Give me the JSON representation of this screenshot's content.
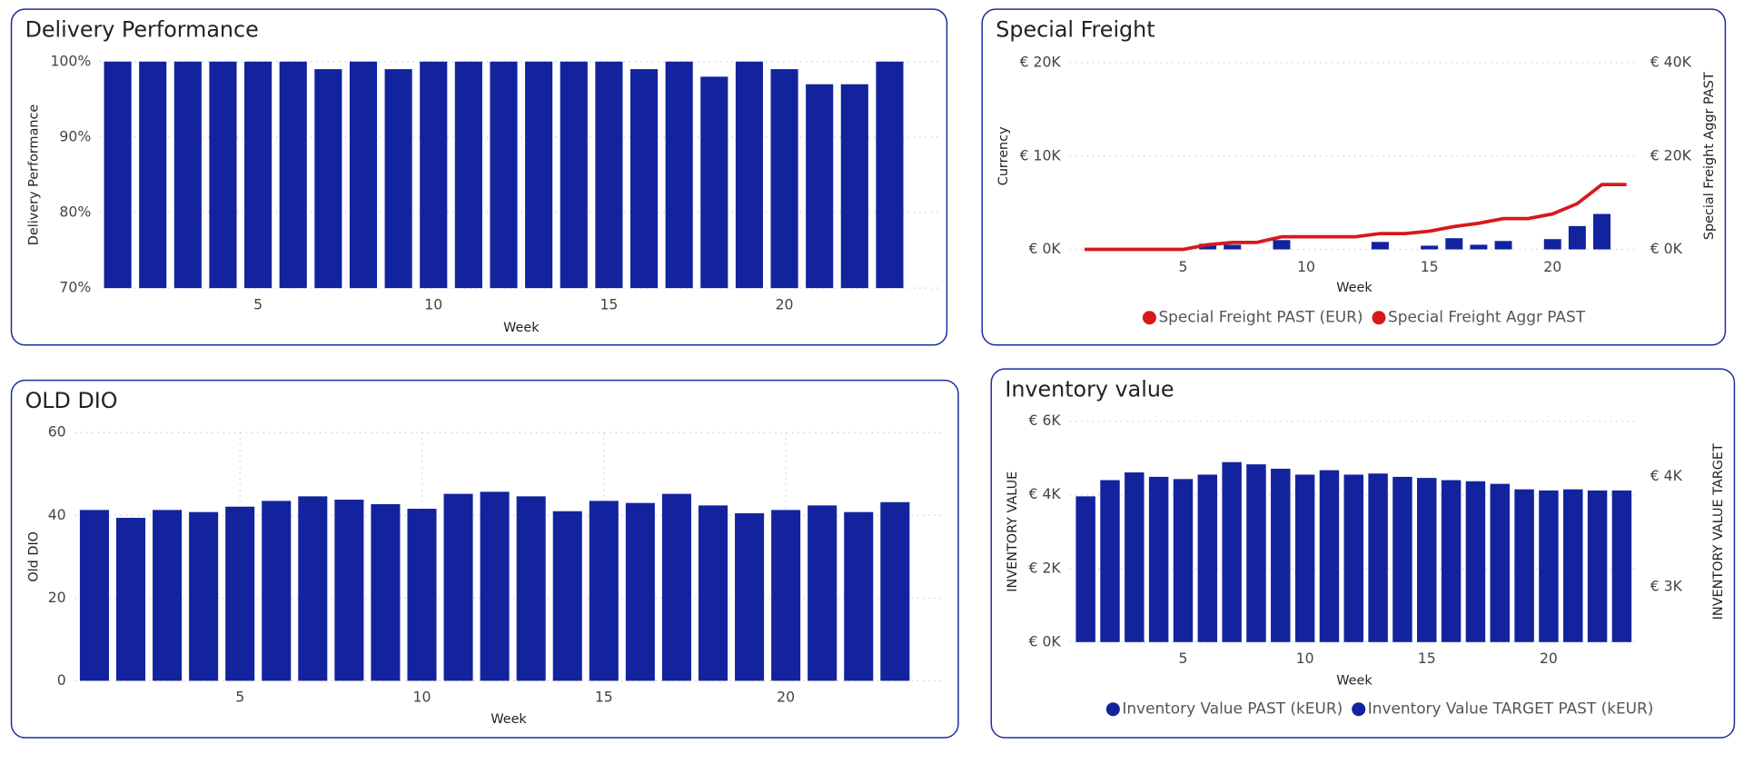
{
  "chart_data": [
    {
      "type": "bar",
      "title": "Delivery Performance",
      "x_label": "Week",
      "y_label": "Delivery Performance",
      "x": [
        1,
        2,
        3,
        4,
        5,
        6,
        7,
        8,
        9,
        10,
        11,
        12,
        13,
        14,
        15,
        16,
        17,
        18,
        19,
        20,
        21,
        22,
        23
      ],
      "values": [
        100,
        100,
        100,
        100,
        100,
        100,
        99,
        100,
        99,
        100,
        100,
        100,
        100,
        100,
        100,
        99,
        100,
        98,
        100,
        99,
        97,
        97,
        100
      ],
      "color": "#13239e",
      "xlim": [
        0.5,
        24.5
      ],
      "xticks": [
        5,
        10,
        15,
        20
      ],
      "ylim": [
        70,
        100
      ],
      "yticks": [
        {
          "value": 70,
          "label": "70%"
        },
        {
          "value": 80,
          "label": "80%"
        },
        {
          "value": 90,
          "label": "90%"
        },
        {
          "value": 100,
          "label": "100%"
        }
      ],
      "grid": true
    },
    {
      "type": "combo",
      "title": "Special Freight",
      "x_label": "Week",
      "y_label": "Currency",
      "y2_label": "Special Freight Aggr PAST",
      "x": [
        1,
        2,
        3,
        4,
        5,
        6,
        7,
        8,
        9,
        10,
        11,
        12,
        13,
        14,
        15,
        16,
        17,
        18,
        19,
        20,
        21,
        22,
        23
      ],
      "series": [
        {
          "name": "Special Freight PAST (EUR)",
          "type": "bar",
          "color": "#13239e",
          "legend_color": "#d7191c",
          "values": [
            0,
            0,
            0,
            0,
            0,
            600,
            500,
            0,
            1000,
            0,
            0,
            0,
            800,
            0,
            400,
            1200,
            500,
            900,
            0,
            1100,
            2500,
            3800,
            0
          ]
        },
        {
          "name": "Special Freight Aggr PAST",
          "type": "line",
          "axis": "y2",
          "color": "#d7191c",
          "values": [
            0,
            0,
            0,
            0,
            0,
            1000,
            1500,
            1500,
            2700,
            2700,
            2700,
            2700,
            3400,
            3400,
            3900,
            4900,
            5600,
            6600,
            6600,
            7600,
            9800,
            13900,
            13900
          ]
        }
      ],
      "xlim": [
        0.4,
        23.5
      ],
      "xticks": [
        5,
        10,
        15,
        20
      ],
      "ylim": [
        0,
        20000
      ],
      "yticks": [
        {
          "value": 0,
          "label": "€ 0K"
        },
        {
          "value": 10000,
          "label": "€ 10K"
        },
        {
          "value": 20000,
          "label": "€ 20K"
        }
      ],
      "y2lim": [
        0,
        40000
      ],
      "y2ticks": [
        {
          "value": 0,
          "label": "€ 0K"
        },
        {
          "value": 20000,
          "label": "€ 20K"
        },
        {
          "value": 40000,
          "label": "€ 40K"
        }
      ],
      "grid": true,
      "legend": "bottom"
    },
    {
      "type": "bar",
      "title": "OLD DIO",
      "x_label": "Week",
      "y_label": "Old DIO",
      "x": [
        1,
        2,
        3,
        4,
        5,
        6,
        7,
        8,
        9,
        10,
        11,
        12,
        13,
        14,
        15,
        16,
        17,
        18,
        19,
        20,
        21,
        22,
        23
      ],
      "values": [
        41.3,
        39.4,
        41.3,
        40.8,
        42.1,
        43.5,
        44.6,
        43.8,
        42.7,
        41.6,
        45.2,
        45.7,
        44.6,
        41.0,
        43.5,
        43.0,
        45.2,
        42.4,
        40.5,
        41.3,
        42.4,
        40.8,
        43.2
      ],
      "color": "#13239e",
      "xlim": [
        0.47,
        24.3
      ],
      "xticks": [
        5,
        10,
        15,
        20
      ],
      "ylim": [
        0,
        60
      ],
      "yticks": [
        0,
        20,
        40,
        60
      ],
      "grid": true,
      "xgrid": true
    },
    {
      "type": "combo",
      "title": "Inventory value",
      "x_label": "Week",
      "y_label": "INVENTORY VALUE",
      "y2_label": "INVENTORY VALUE TARGET",
      "x": [
        1,
        2,
        3,
        4,
        5,
        6,
        7,
        8,
        9,
        10,
        11,
        12,
        13,
        14,
        15,
        16,
        17,
        18,
        19,
        20,
        21,
        22,
        23
      ],
      "series": [
        {
          "name": "Inventory Value PAST (kEUR)",
          "type": "bar",
          "color": "#13239e",
          "values": [
            3960,
            4400,
            4610,
            4490,
            4430,
            4550,
            4890,
            4830,
            4710,
            4550,
            4670,
            4550,
            4580,
            4490,
            4460,
            4400,
            4370,
            4300,
            4150,
            4120,
            4150,
            4120,
            4120
          ]
        },
        {
          "name": "Inventory Value TARGET PAST (kEUR)",
          "type": "line",
          "axis": "y2",
          "color": "#13239e",
          "values": [
            null,
            null,
            null,
            null,
            null,
            null,
            null,
            null,
            null,
            null,
            null,
            null,
            null,
            null,
            null,
            null,
            null,
            null,
            null,
            null,
            null,
            null,
            null
          ]
        }
      ],
      "xlim": [
        0.35,
        23.7
      ],
      "xticks": [
        5,
        10,
        15,
        20
      ],
      "ylim": [
        0,
        6000
      ],
      "yticks": [
        {
          "value": 0,
          "label": "€ 0K"
        },
        {
          "value": 2000,
          "label": "€ 2K"
        },
        {
          "value": 4000,
          "label": "€ 4K"
        },
        {
          "value": 6000,
          "label": "€ 6K"
        }
      ],
      "y2lim": [
        2500,
        4500
      ],
      "y2ticks": [
        {
          "value": 3000,
          "label": "€ 3K"
        },
        {
          "value": 4000,
          "label": "€ 4K"
        }
      ],
      "grid": true,
      "legend": "bottom"
    }
  ]
}
